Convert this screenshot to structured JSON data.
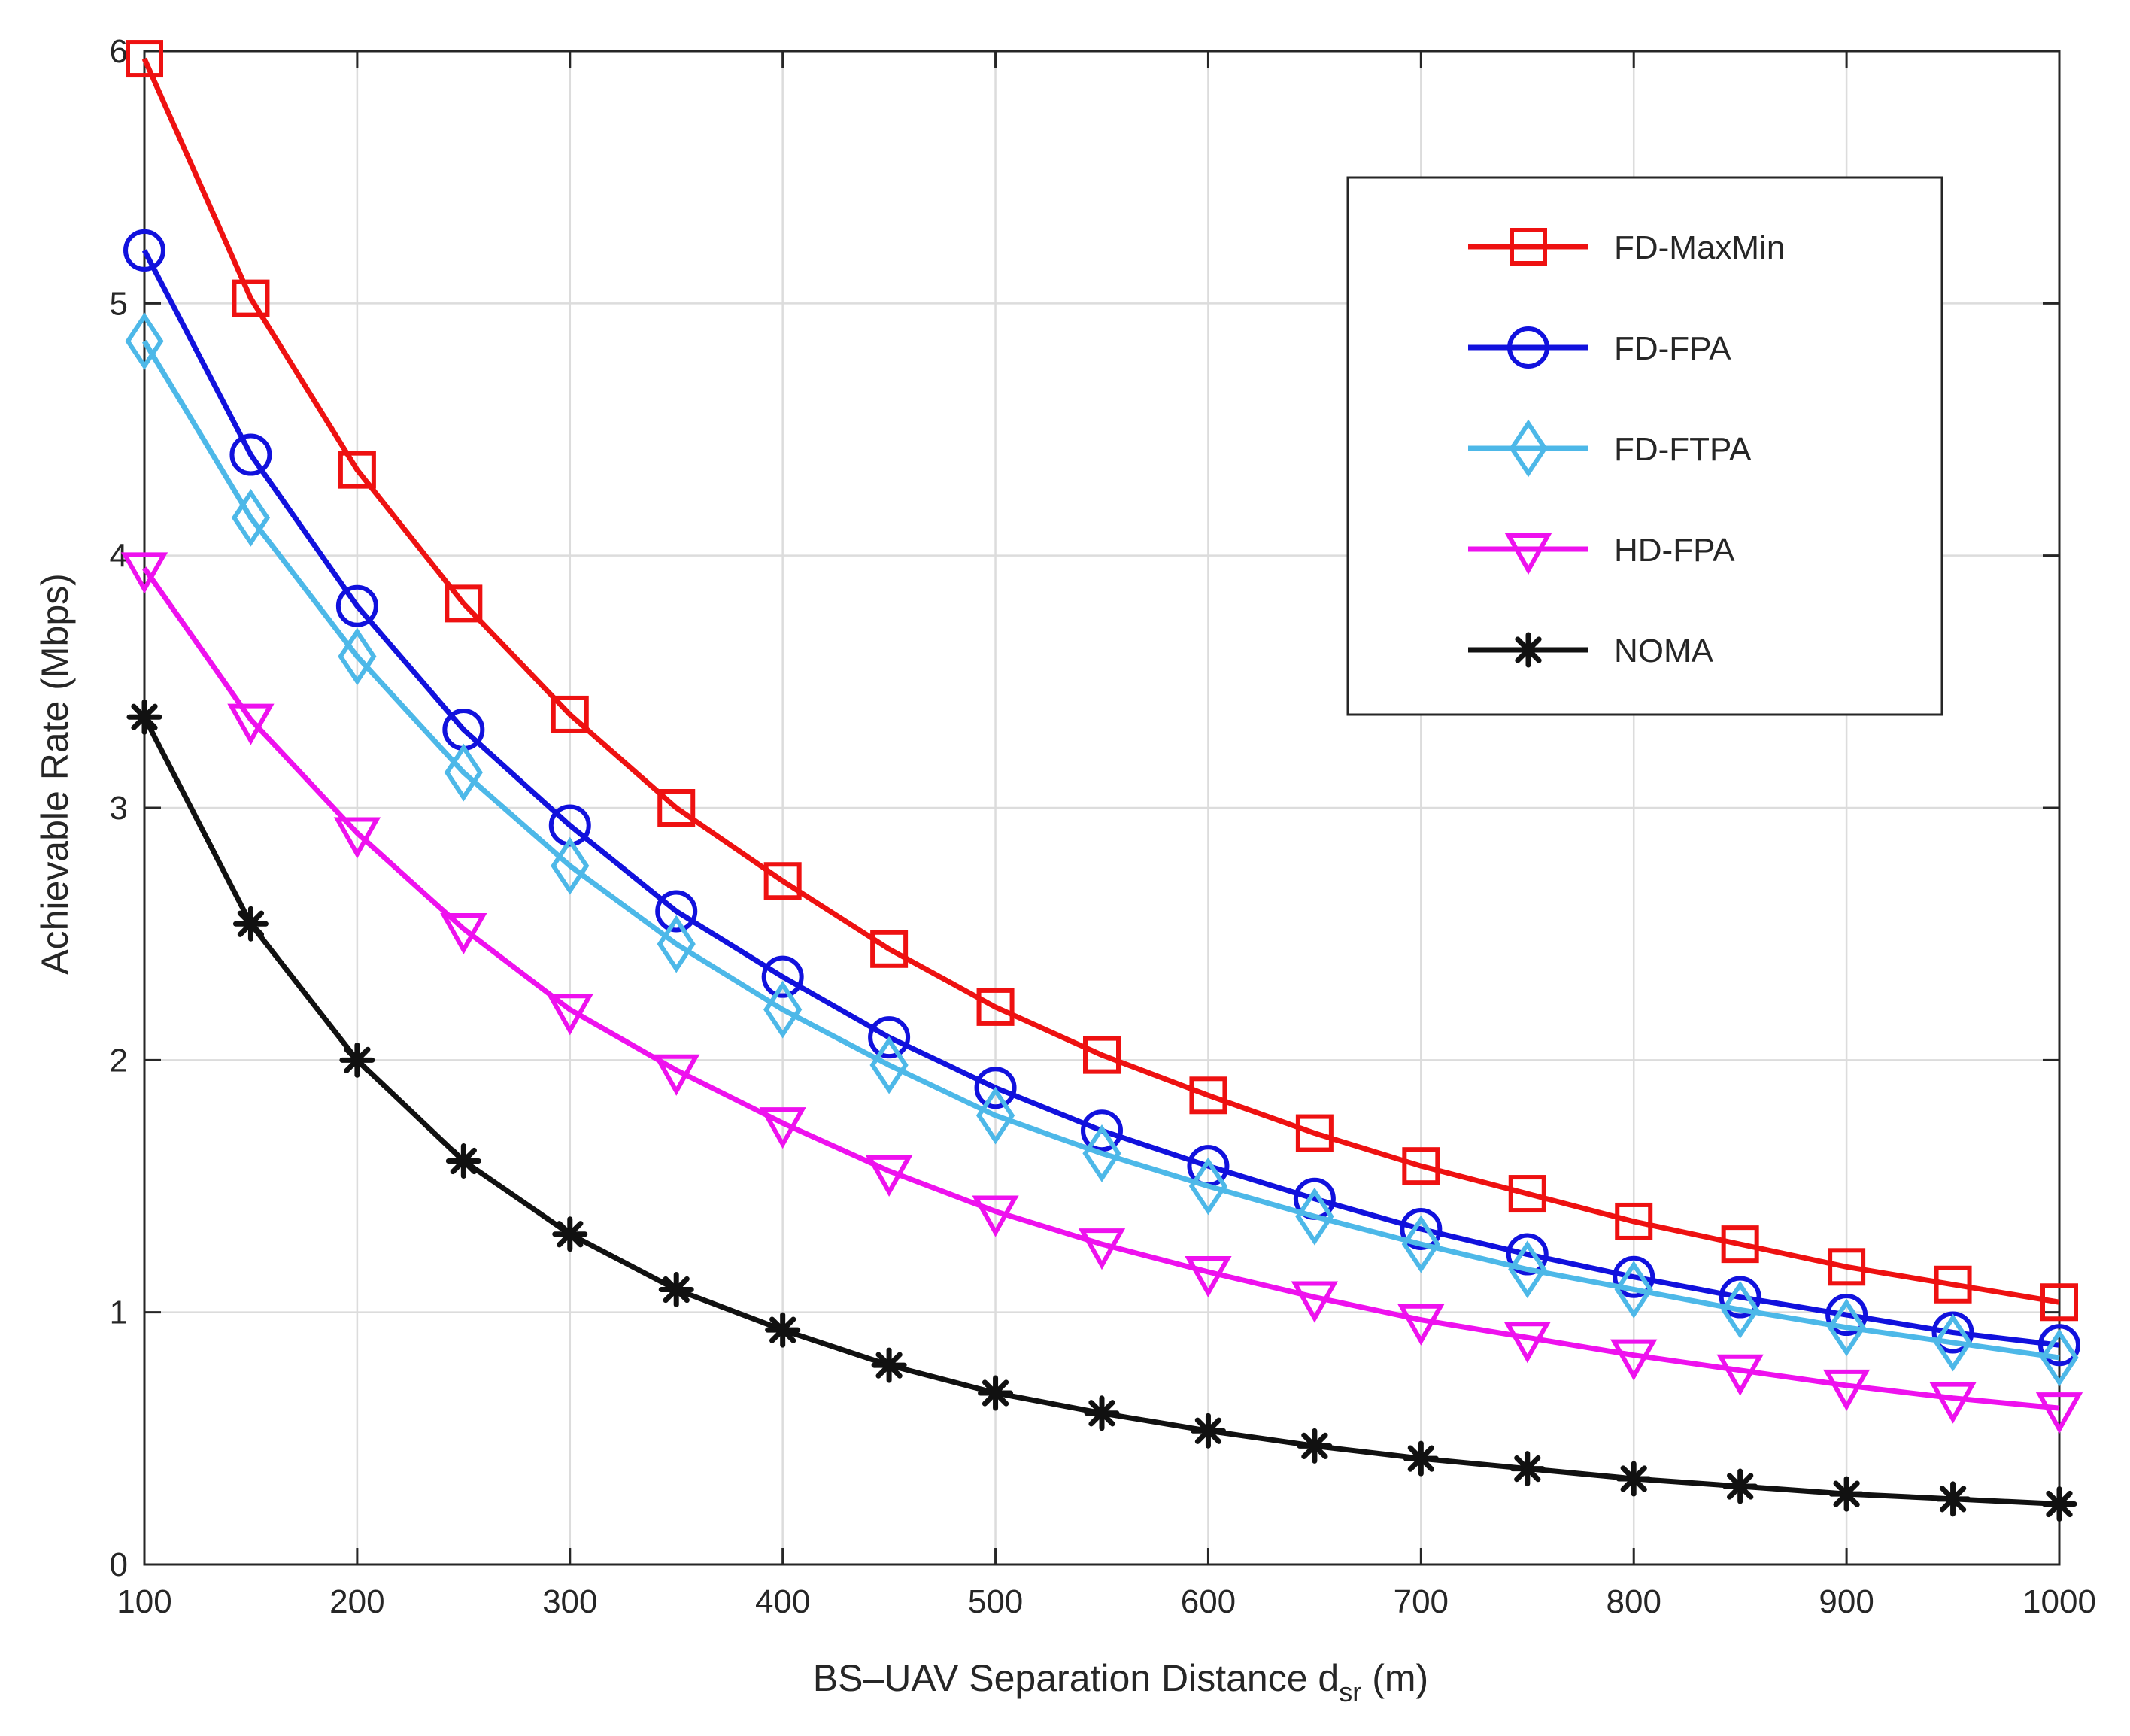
{
  "chart_data": {
    "type": "line",
    "title": "",
    "xlabel_main": "BS–UAV Separation Distance d",
    "xlabel_sub": "sr",
    "xlabel_unit": "(m)",
    "ylabel": "Achievable Rate (Mbps)",
    "xlim": [
      100,
      1000
    ],
    "ylim": [
      0,
      6
    ],
    "xticks": [
      100,
      200,
      300,
      400,
      500,
      600,
      700,
      800,
      900,
      1000
    ],
    "yticks": [
      0,
      1,
      2,
      3,
      4,
      5,
      6
    ],
    "grid": true,
    "legend_position": "top-right",
    "x": [
      100,
      150,
      200,
      250,
      300,
      350,
      400,
      450,
      500,
      550,
      600,
      650,
      700,
      750,
      800,
      850,
      900,
      950,
      1000
    ],
    "series": [
      {
        "name": "FD-MaxMin",
        "color": "#ee1111",
        "marker": "square",
        "values": [
          5.97,
          5.02,
          4.34,
          3.81,
          3.37,
          3.0,
          2.71,
          2.44,
          2.21,
          2.02,
          1.86,
          1.71,
          1.58,
          1.47,
          1.36,
          1.27,
          1.18,
          1.11,
          1.04
        ]
      },
      {
        "name": "FD-FPA",
        "color": "#1111dd",
        "marker": "circle",
        "values": [
          5.21,
          4.4,
          3.8,
          3.31,
          2.93,
          2.59,
          2.33,
          2.09,
          1.89,
          1.72,
          1.58,
          1.45,
          1.33,
          1.23,
          1.14,
          1.06,
          0.99,
          0.92,
          0.87
        ]
      },
      {
        "name": "FD-FTPA",
        "color": "#4db8e8",
        "marker": "diamond",
        "values": [
          4.85,
          4.15,
          3.6,
          3.14,
          2.77,
          2.46,
          2.2,
          1.98,
          1.78,
          1.63,
          1.5,
          1.38,
          1.27,
          1.17,
          1.09,
          1.01,
          0.94,
          0.88,
          0.82
        ]
      },
      {
        "name": "HD-FPA",
        "color": "#ee11ee",
        "marker": "triangle-down",
        "values": [
          3.95,
          3.35,
          2.9,
          2.52,
          2.2,
          1.96,
          1.75,
          1.56,
          1.4,
          1.27,
          1.16,
          1.06,
          0.97,
          0.9,
          0.83,
          0.77,
          0.71,
          0.66,
          0.62
        ]
      },
      {
        "name": "NOMA",
        "color": "#111111",
        "marker": "asterisk",
        "values": [
          3.36,
          2.54,
          2.0,
          1.6,
          1.31,
          1.09,
          0.93,
          0.79,
          0.68,
          0.6,
          0.53,
          0.47,
          0.42,
          0.38,
          0.34,
          0.31,
          0.28,
          0.26,
          0.24
        ]
      }
    ]
  }
}
